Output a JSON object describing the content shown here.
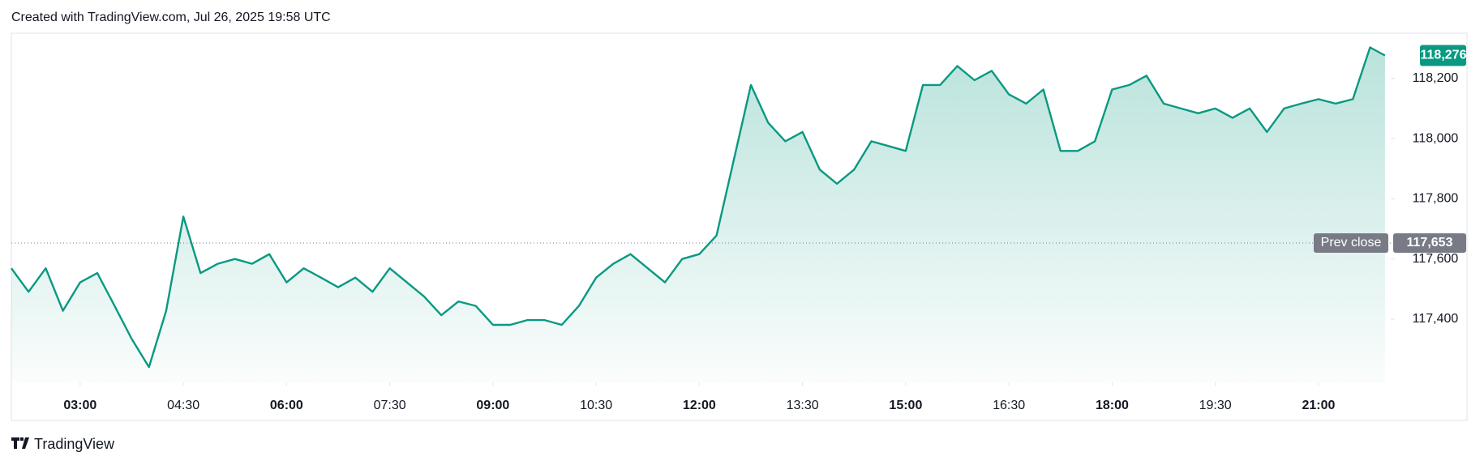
{
  "header": {
    "title": "Created with TradingView.com, Jul 26, 2025 19:58 UTC"
  },
  "footer": {
    "brand": "TradingView"
  },
  "chart_data": {
    "type": "area",
    "color": "#089981",
    "x": [
      "02:00",
      "02:15",
      "02:30",
      "02:45",
      "03:00",
      "03:15",
      "03:30",
      "03:45",
      "04:00",
      "04:15",
      "04:30",
      "04:45",
      "05:00",
      "05:15",
      "05:30",
      "05:45",
      "06:00",
      "06:15",
      "06:30",
      "06:45",
      "07:00",
      "07:15",
      "07:30",
      "07:45",
      "08:00",
      "08:15",
      "08:30",
      "08:45",
      "09:00",
      "09:15",
      "09:30",
      "09:45",
      "10:00",
      "10:15",
      "10:30",
      "10:45",
      "11:00",
      "11:15",
      "11:30",
      "11:45",
      "12:00",
      "12:15",
      "12:30",
      "12:45",
      "13:00",
      "13:15",
      "13:30",
      "13:45",
      "14:00",
      "14:15",
      "14:30",
      "14:45",
      "15:00",
      "15:15",
      "15:30",
      "15:45",
      "16:00",
      "16:15",
      "16:30",
      "16:45",
      "17:00",
      "17:15",
      "17:30",
      "17:45",
      "18:00",
      "18:15",
      "18:30",
      "18:45",
      "19:00",
      "19:15",
      "19:30",
      "19:45",
      "20:00",
      "20:15",
      "20:30",
      "20:45",
      "21:00",
      "21:15",
      "21:30",
      "21:45",
      "21:58"
    ],
    "values": [
      117569,
      117491,
      117569,
      117428,
      117522,
      117553,
      117444,
      117334,
      117241,
      117428,
      117741,
      117553,
      117584,
      117600,
      117584,
      117616,
      117522,
      117569,
      117538,
      117506,
      117538,
      117491,
      117569,
      117522,
      117475,
      117413,
      117459,
      117444,
      117381,
      117381,
      117397,
      117397,
      117381,
      117444,
      117538,
      117584,
      117616,
      117569,
      117522,
      117600,
      117616,
      117678,
      117928,
      118178,
      118053,
      117991,
      118022,
      117897,
      117850,
      117897,
      117991,
      117975,
      117959,
      118178,
      118178,
      118241,
      118194,
      118225,
      118147,
      118116,
      118163,
      117959,
      117959,
      117991,
      118163,
      118178,
      118209,
      118116,
      118100,
      118084,
      118100,
      118069,
      118100,
      118022,
      118100,
      118116,
      118131,
      118116,
      118131,
      118303,
      118276
    ],
    "xlim": [
      "02:00",
      "22:03"
    ],
    "xticks": [
      "03:00",
      "04:30",
      "06:00",
      "07:30",
      "09:00",
      "10:30",
      "12:00",
      "13:30",
      "15:00",
      "16:30",
      "18:00",
      "19:30",
      "21:00"
    ],
    "ylim": [
      117190,
      118350
    ],
    "yticks": [
      {
        "value": 117400,
        "label": "117,400"
      },
      {
        "value": 117600,
        "label": "117,600"
      },
      {
        "value": 117800,
        "label": "117,800"
      },
      {
        "value": 118000,
        "label": "118,000"
      },
      {
        "value": 118200,
        "label": "118,200"
      }
    ],
    "last_price": {
      "value": 118276,
      "label": "118,276"
    },
    "prev_close": {
      "label": "Prev close",
      "value": 117653,
      "value_label": "117,653"
    }
  }
}
